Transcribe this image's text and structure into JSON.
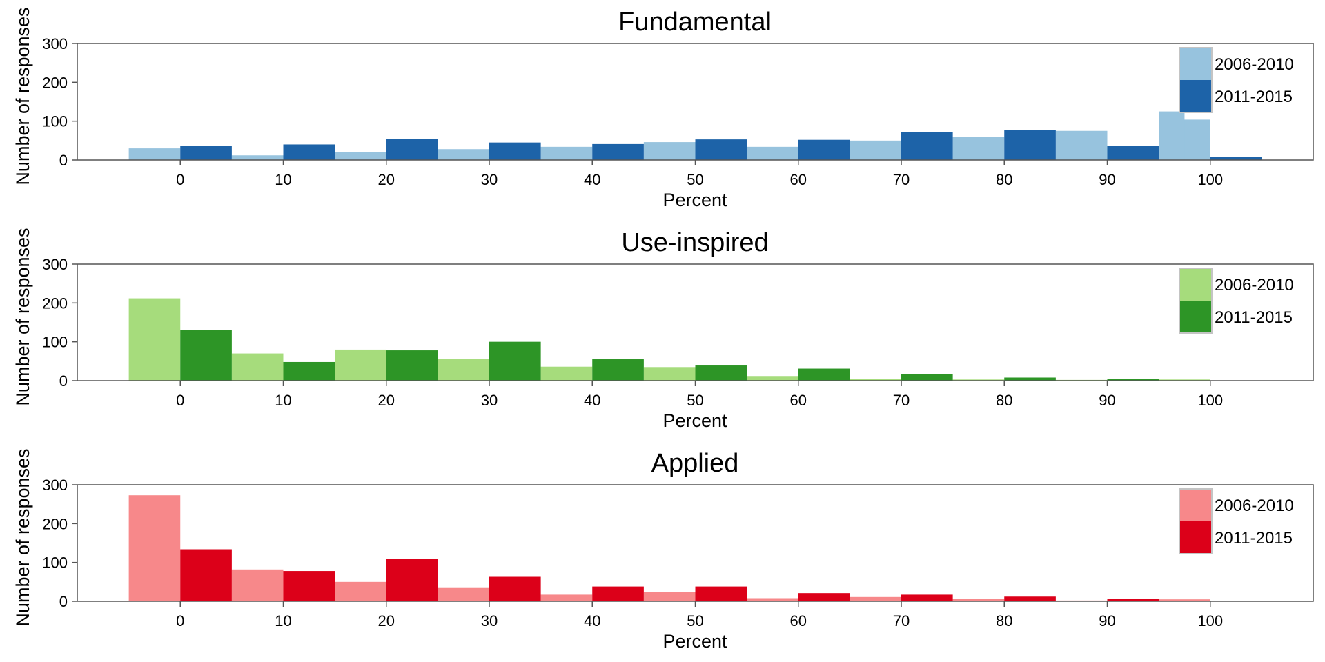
{
  "chart_data": [
    {
      "type": "bar",
      "title": "Fundamental",
      "xlabel": "Percent",
      "ylabel": "Number of responses",
      "xlim": [
        -10,
        110
      ],
      "ylim": [
        0,
        300
      ],
      "xticks": [
        0,
        10,
        20,
        30,
        40,
        50,
        60,
        70,
        80,
        90,
        100
      ],
      "yticks": [
        0,
        100,
        200,
        300
      ],
      "legend_position": "top-right",
      "series": [
        {
          "name": "2006-2010",
          "color": "#97c3de",
          "x": [
            0,
            10,
            20,
            30,
            40,
            50,
            60,
            70,
            80,
            90,
            100
          ],
          "values": [
            30,
            12,
            20,
            28,
            34,
            46,
            34,
            50,
            60,
            75,
            104
          ],
          "extra": [
            {
              "x": 97.5,
              "value": 125
            }
          ]
        },
        {
          "name": "2011-2015",
          "color": "#1d63a8",
          "x": [
            0,
            10,
            20,
            30,
            40,
            50,
            60,
            70,
            80,
            90,
            100
          ],
          "values": [
            37,
            40,
            55,
            45,
            41,
            53,
            52,
            71,
            77,
            37,
            8
          ]
        }
      ]
    },
    {
      "type": "bar",
      "title": "Use-inspired",
      "xlabel": "Percent",
      "ylabel": "Number of responses",
      "xlim": [
        -10,
        110
      ],
      "ylim": [
        0,
        300
      ],
      "xticks": [
        0,
        10,
        20,
        30,
        40,
        50,
        60,
        70,
        80,
        90,
        100
      ],
      "yticks": [
        0,
        100,
        200,
        300
      ],
      "legend_position": "top-right",
      "series": [
        {
          "name": "2006-2010",
          "color": "#a6dc7c",
          "x": [
            0,
            10,
            20,
            30,
            40,
            50,
            60,
            70,
            80,
            90,
            100
          ],
          "values": [
            212,
            70,
            80,
            55,
            36,
            35,
            12,
            5,
            3,
            2,
            3
          ]
        },
        {
          "name": "2011-2015",
          "color": "#2d9526",
          "x": [
            0,
            10,
            20,
            30,
            40,
            50,
            60,
            70,
            80,
            90,
            100
          ],
          "values": [
            130,
            48,
            78,
            100,
            55,
            39,
            31,
            17,
            8,
            4,
            0
          ]
        }
      ]
    },
    {
      "type": "bar",
      "title": "Applied",
      "xlabel": "Percent",
      "ylabel": "Number of responses",
      "xlim": [
        -10,
        110
      ],
      "ylim": [
        0,
        300
      ],
      "xticks": [
        0,
        10,
        20,
        30,
        40,
        50,
        60,
        70,
        80,
        90,
        100
      ],
      "yticks": [
        0,
        100,
        200,
        300
      ],
      "legend_position": "top-right",
      "series": [
        {
          "name": "2006-2010",
          "color": "#f7888a",
          "x": [
            0,
            10,
            20,
            30,
            40,
            50,
            60,
            70,
            80,
            90,
            100
          ],
          "values": [
            273,
            82,
            50,
            36,
            17,
            24,
            8,
            11,
            7,
            2,
            5
          ]
        },
        {
          "name": "2011-2015",
          "color": "#dc0019",
          "x": [
            0,
            10,
            20,
            30,
            40,
            50,
            60,
            70,
            80,
            90,
            100
          ],
          "values": [
            134,
            78,
            109,
            63,
            38,
            38,
            21,
            17,
            12,
            7,
            0
          ]
        }
      ]
    }
  ]
}
